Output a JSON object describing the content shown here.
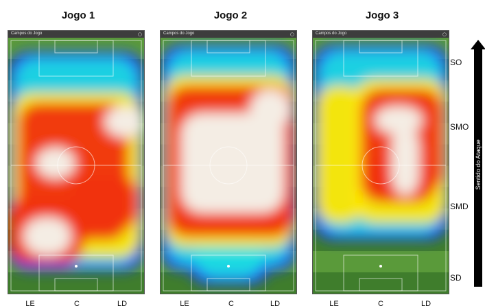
{
  "games": [
    {
      "title": "Jogo 1",
      "window_label": "Campos do Jogo"
    },
    {
      "title": "Jogo 2",
      "window_label": "Campos do Jogo"
    },
    {
      "title": "Jogo 3",
      "window_label": "Campos do Jogo"
    }
  ],
  "zones": [
    "SO",
    "SMO",
    "SMD",
    "SD"
  ],
  "columns": [
    "LE",
    "C",
    "LD"
  ],
  "attack_direction_label": "Sentido do Ataque",
  "colors": {
    "pitch_light": "#5a9a3a",
    "pitch_dark": "#3f7d2c",
    "heat_low": "#1e3cff",
    "heat_mid": "#1ee0e0",
    "heat_yellow": "#ffe600",
    "heat_red": "#f03010",
    "heat_peak": "#f4ede4"
  }
}
